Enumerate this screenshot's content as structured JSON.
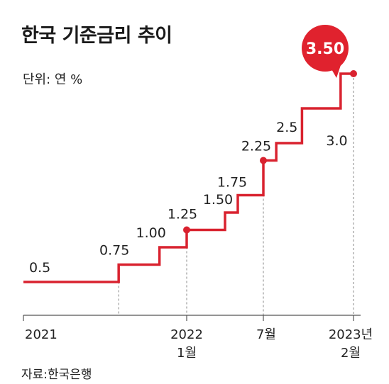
{
  "chart_data": {
    "type": "line",
    "step": true,
    "title": "한국 기준금리 추이",
    "unit_label": "단위: 연 %",
    "source": "자료:한국은행",
    "points": [
      {
        "x": "2021-01",
        "y": 0.5,
        "label": "0.5"
      },
      {
        "x": "2021-08",
        "y": 0.75,
        "label": "0.75"
      },
      {
        "x": "2021-11",
        "y": 1.0,
        "label": "1.00"
      },
      {
        "x": "2022-01",
        "y": 1.25,
        "label": "1.25",
        "marker": true
      },
      {
        "x": "2022-04",
        "y": 1.5,
        "label": "1.50"
      },
      {
        "x": "2022-05",
        "y": 1.75,
        "label": "1.75"
      },
      {
        "x": "2022-07",
        "y": 2.25,
        "label": "2.25",
        "marker": true
      },
      {
        "x": "2022-08",
        "y": 2.5,
        "label": "2.5"
      },
      {
        "x": "2022-10",
        "y": 3.0,
        "label": "3.0"
      },
      {
        "x": "2023-01",
        "y": 3.5,
        "label": "3.50",
        "marker": true,
        "highlight": true
      }
    ],
    "x_end": "2023-02",
    "x_ticks": [
      {
        "x": "2021-01",
        "label": "2021",
        "sub": ""
      },
      {
        "x": "2022-01",
        "label": "2022",
        "sub": "1월"
      },
      {
        "x": "2022-07",
        "label": "7월",
        "sub": ""
      },
      {
        "x": "2023-02",
        "label": "2023년",
        "sub": "2월"
      }
    ],
    "colors": {
      "line": "#d9222f",
      "axis": "#555555",
      "guide": "#888888",
      "bubble": "#e0222e"
    }
  }
}
